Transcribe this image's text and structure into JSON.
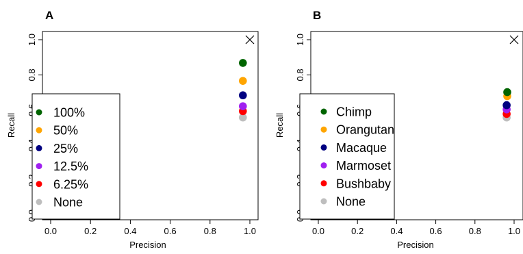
{
  "chart_data": [
    {
      "type": "scatter",
      "panel_label": "A",
      "xlabel": "Precision",
      "ylabel": "Recall",
      "xlim": [
        0,
        1
      ],
      "ylim": [
        0,
        1
      ],
      "x_ticks": [
        "0.0",
        "0.2",
        "0.4",
        "0.6",
        "0.8",
        "1.0"
      ],
      "y_ticks": [
        "0.0",
        "0.2",
        "0.4",
        "0.6",
        "0.8",
        "1.0"
      ],
      "grid": false,
      "legend_position": "bottom-left",
      "marker": {
        "x": 1.0,
        "y": 1.0,
        "symbol": "×"
      },
      "series": [
        {
          "name": "100%",
          "color": "#006400",
          "x": [
            0.965
          ],
          "y": [
            0.868
          ]
        },
        {
          "name": "50%",
          "color": "#FFA500",
          "x": [
            0.965
          ],
          "y": [
            0.766
          ]
        },
        {
          "name": "25%",
          "color": "#000080",
          "x": [
            0.965
          ],
          "y": [
            0.684
          ]
        },
        {
          "name": "12.5%",
          "color": "#A020F0",
          "x": [
            0.965
          ],
          "y": [
            0.622
          ]
        },
        {
          "name": "6.25%",
          "color": "#FF0000",
          "x": [
            0.965
          ],
          "y": [
            0.594
          ]
        },
        {
          "name": "None",
          "color": "#BEBEBE",
          "x": [
            0.965
          ],
          "y": [
            0.558
          ]
        }
      ]
    },
    {
      "type": "scatter",
      "panel_label": "B",
      "xlabel": "Precision",
      "ylabel": "Recall",
      "xlim": [
        0,
        1
      ],
      "ylim": [
        0,
        1
      ],
      "x_ticks": [
        "0.0",
        "0.2",
        "0.4",
        "0.6",
        "0.8",
        "1.0"
      ],
      "y_ticks": [
        "0.0",
        "0.2",
        "0.4",
        "0.6",
        "0.8",
        "1.0"
      ],
      "grid": false,
      "legend_position": "bottom-left",
      "marker": {
        "x": 1.0,
        "y": 1.0,
        "symbol": "×"
      },
      "series": [
        {
          "name": "Chimp",
          "color": "#006400",
          "x": [
            0.965
          ],
          "y": [
            0.702
          ]
        },
        {
          "name": "Orangutan",
          "color": "#FFA500",
          "x": [
            0.965
          ],
          "y": [
            0.679
          ]
        },
        {
          "name": "Macaque",
          "color": "#000080",
          "x": [
            0.962
          ],
          "y": [
            0.628
          ]
        },
        {
          "name": "Marmoset",
          "color": "#A020F0",
          "x": [
            0.962
          ],
          "y": [
            0.604
          ]
        },
        {
          "name": "Bushbaby",
          "color": "#FF0000",
          "x": [
            0.962
          ],
          "y": [
            0.578
          ]
        },
        {
          "name": "None",
          "color": "#BEBEBE",
          "x": [
            0.962
          ],
          "y": [
            0.558
          ]
        }
      ]
    }
  ]
}
